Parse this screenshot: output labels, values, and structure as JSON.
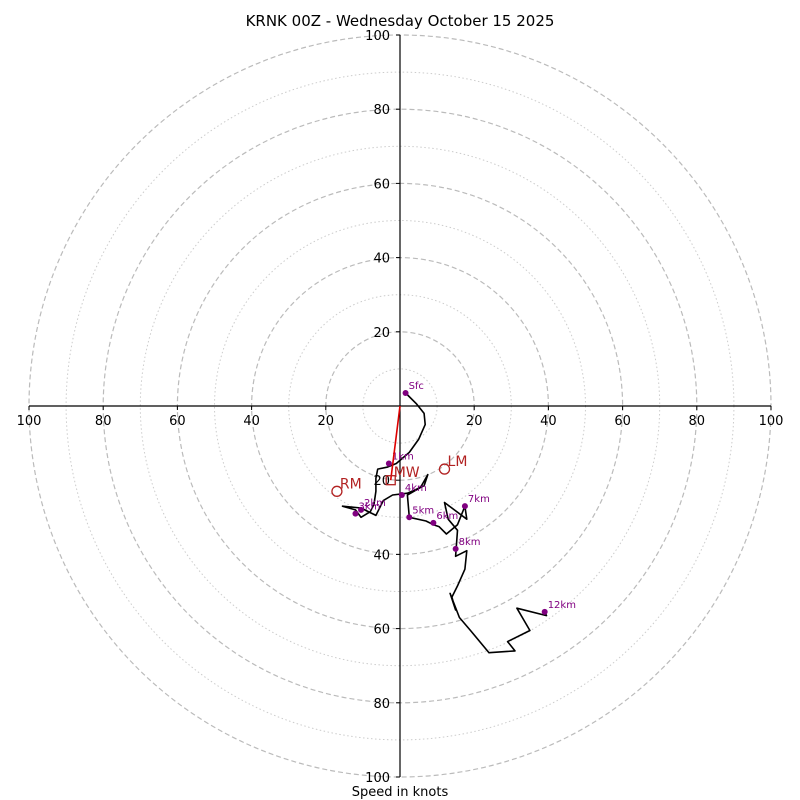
{
  "chart_data": {
    "type": "hodograph",
    "title": "KRNK 00Z - Wednesday October 15 2025",
    "xlabel": "Speed in knots",
    "range_max": 100,
    "ring_labels": [
      20,
      40,
      60,
      80,
      100
    ],
    "x_tick_labels": [
      "100",
      "80",
      "60",
      "40",
      "20",
      "20",
      "40",
      "60",
      "80",
      "100"
    ],
    "y_tick_labels": [
      "100",
      "80",
      "60",
      "40",
      "20",
      "20",
      "40",
      "60",
      "80",
      "100"
    ],
    "hodograph": [
      [
        1.5,
        3.5
      ],
      [
        4.5,
        0.5
      ],
      [
        6.5,
        -2.0
      ],
      [
        6.8,
        -5.0
      ],
      [
        5.0,
        -9.0
      ],
      [
        2.5,
        -12.5
      ],
      [
        -1.0,
        -15.5
      ],
      [
        -3.5,
        -16.5
      ],
      [
        -6.0,
        -17.0
      ],
      [
        -6.5,
        -19.5
      ],
      [
        -6.5,
        -23.0
      ],
      [
        -7.0,
        -26.5
      ],
      [
        -8.0,
        -28.5
      ],
      [
        -10.5,
        -30.0
      ],
      [
        -12.0,
        -28.0
      ],
      [
        -15.5,
        -27.0
      ],
      [
        -10.5,
        -27.5
      ],
      [
        -6.5,
        -29.5
      ],
      [
        -4.5,
        -25.5
      ],
      [
        -2.0,
        -24.0
      ],
      [
        2.0,
        -23.5
      ],
      [
        6.5,
        -21.5
      ],
      [
        7.5,
        -18.5
      ],
      [
        5.5,
        -22.0
      ],
      [
        2.0,
        -24.0
      ],
      [
        2.5,
        -30.0
      ],
      [
        7.0,
        -31.0
      ],
      [
        9.0,
        -32.0
      ],
      [
        10.5,
        -32.5
      ],
      [
        12.5,
        -34.5
      ],
      [
        15.5,
        -32.0
      ],
      [
        17.5,
        -27.0
      ],
      [
        18.0,
        -30.5
      ],
      [
        12.0,
        -26.0
      ],
      [
        13.0,
        -30.5
      ],
      [
        15.5,
        -33.5
      ],
      [
        15.0,
        -40.5
      ],
      [
        18.0,
        -39.0
      ],
      [
        17.5,
        -44.0
      ],
      [
        15.5,
        -48.5
      ],
      [
        14.0,
        -51.5
      ],
      [
        15.0,
        -55.0
      ],
      [
        13.5,
        -50.5
      ],
      [
        16.0,
        -57.0
      ],
      [
        19.0,
        -60.5
      ],
      [
        24.0,
        -66.5
      ],
      [
        31.0,
        -66.0
      ],
      [
        29.0,
        -63.5
      ],
      [
        35.0,
        -60.5
      ],
      [
        31.5,
        -54.5
      ],
      [
        39.5,
        -56.5
      ],
      [
        39.0,
        -55.5
      ]
    ],
    "levels": [
      {
        "label": "Sfc",
        "u": 1.5,
        "v": 3.5
      },
      {
        "label": "1km",
        "u": -3.0,
        "v": -15.5
      },
      {
        "label": "2km",
        "u": -10.5,
        "v": -28.0
      },
      {
        "label": "3km",
        "u": -12.0,
        "v": -29.0
      },
      {
        "label": "4km",
        "u": 0.5,
        "v": -24.0
      },
      {
        "label": "5km",
        "u": 2.5,
        "v": -30.0
      },
      {
        "label": "6km",
        "u": 9.0,
        "v": -31.5
      },
      {
        "label": "7km",
        "u": 17.5,
        "v": -27.0
      },
      {
        "label": "8km",
        "u": 15.0,
        "v": -38.5
      },
      {
        "label": "12km",
        "u": 39.0,
        "v": -55.5
      }
    ],
    "storm_motion": [
      {
        "label": "RM",
        "u": -17.0,
        "v": -23.0,
        "marker": "circle"
      },
      {
        "label": "LM",
        "u": 12.0,
        "v": -17.0,
        "marker": "circle"
      },
      {
        "label": "MW",
        "u": -2.5,
        "v": -20.0,
        "marker": "square"
      }
    ],
    "shear_vector": {
      "from": [
        0,
        0
      ],
      "to": [
        -2.5,
        -20.0
      ]
    }
  }
}
